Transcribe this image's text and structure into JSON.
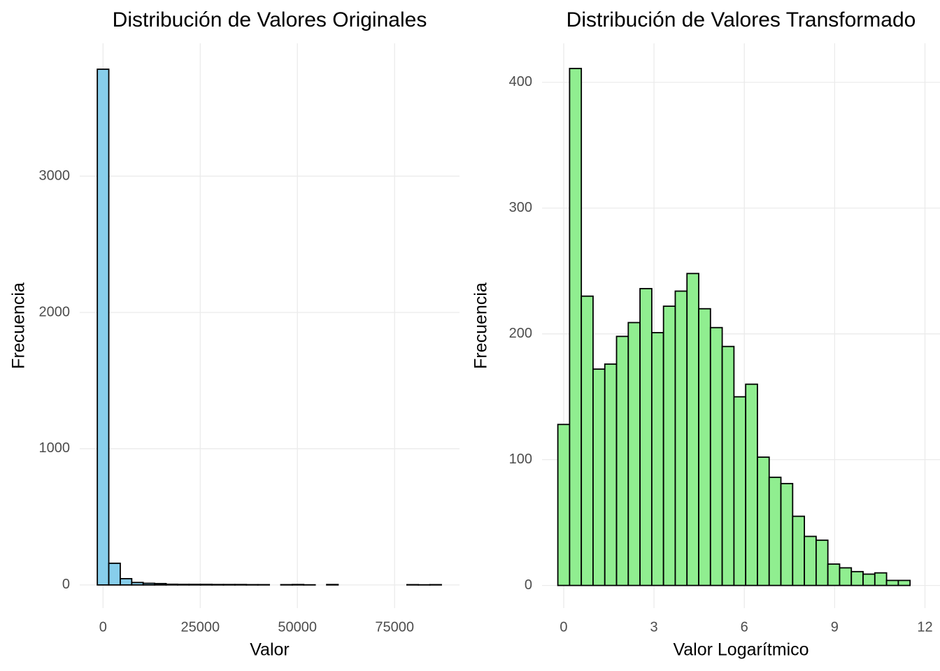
{
  "chart_data": [
    {
      "type": "histogram",
      "title": "Distribución de Valores Originales",
      "x_label": "Valor",
      "y_label": "Frecuencia",
      "bins": [
        -1475,
        1475,
        4425,
        7375,
        10325,
        13275,
        16225,
        19175,
        22125,
        25075,
        28025,
        30975,
        33925,
        36875,
        39825,
        42775,
        45725,
        48675,
        51625,
        54575,
        57525,
        60475,
        63425,
        66375,
        69325,
        72275,
        75225,
        78175,
        81125,
        84075,
        87025
      ],
      "values": [
        3785,
        159,
        46,
        18,
        12,
        10,
        5,
        4,
        4,
        4,
        3,
        3,
        3,
        2,
        2,
        0,
        2,
        3,
        1,
        0,
        3,
        0,
        0,
        0,
        0,
        0,
        0,
        2,
        1,
        2
      ],
      "color": "#87ceeb",
      "edgecolor": "#000000",
      "xlim": [
        -6000,
        91700
      ],
      "xticks": [
        0,
        25000,
        50000,
        75000
      ],
      "ylim": [
        -170,
        3975
      ],
      "yticks": [
        0,
        1000,
        2000,
        3000
      ],
      "grid": true
    },
    {
      "type": "histogram",
      "title": "Distribución de Valores Transformado",
      "x_label": "Valor Logarítmico",
      "y_label": "Frecuencia",
      "bins": [
        -0.195,
        0.195,
        0.585,
        0.975,
        1.365,
        1.755,
        2.145,
        2.535,
        2.925,
        3.315,
        3.705,
        4.095,
        4.485,
        4.875,
        5.265,
        5.655,
        6.045,
        6.435,
        6.825,
        7.215,
        7.605,
        7.995,
        8.385,
        8.775,
        9.165,
        9.555,
        9.945,
        10.335,
        10.725,
        11.115,
        11.505
      ],
      "values": [
        128,
        411,
        230,
        172,
        176,
        198,
        209,
        236,
        201,
        222,
        234,
        248,
        220,
        205,
        190,
        150,
        160,
        102,
        86,
        81,
        55,
        39,
        36,
        17,
        14,
        11,
        9,
        10,
        4,
        4
      ],
      "color": "#90ee90",
      "edgecolor": "#000000",
      "xlim": [
        -0.72,
        12.5
      ],
      "xticks": [
        0,
        3,
        6,
        9,
        12
      ],
      "ylim": [
        -18,
        431
      ],
      "yticks": [
        0,
        100,
        200,
        300,
        400
      ],
      "grid": true
    }
  ]
}
